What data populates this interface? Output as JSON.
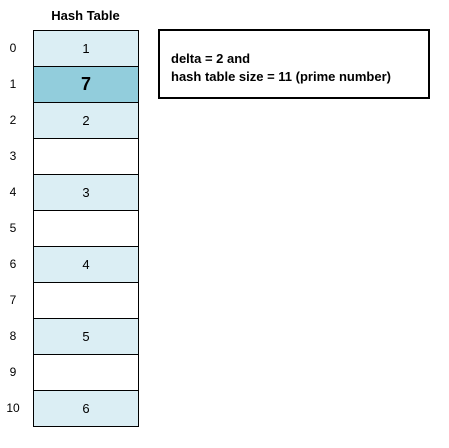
{
  "table": {
    "title": "Hash Table",
    "slots": [
      {
        "index": "0",
        "value": "1",
        "state": "filled"
      },
      {
        "index": "1",
        "value": "7",
        "state": "highlight"
      },
      {
        "index": "2",
        "value": "2",
        "state": "filled"
      },
      {
        "index": "3",
        "value": "",
        "state": "empty"
      },
      {
        "index": "4",
        "value": "3",
        "state": "filled"
      },
      {
        "index": "5",
        "value": "",
        "state": "empty"
      },
      {
        "index": "6",
        "value": "4",
        "state": "filled"
      },
      {
        "index": "7",
        "value": "",
        "state": "empty"
      },
      {
        "index": "8",
        "value": "5",
        "state": "filled"
      },
      {
        "index": "9",
        "value": "",
        "state": "empty"
      },
      {
        "index": "10",
        "value": "6",
        "state": "filled"
      }
    ]
  },
  "info_box": {
    "line1": "delta = 2 and",
    "line2": "hash table size = 11 (prime number)"
  },
  "colors": {
    "filled": "#dbeef4",
    "highlight": "#92cddc",
    "empty": "#ffffff"
  }
}
